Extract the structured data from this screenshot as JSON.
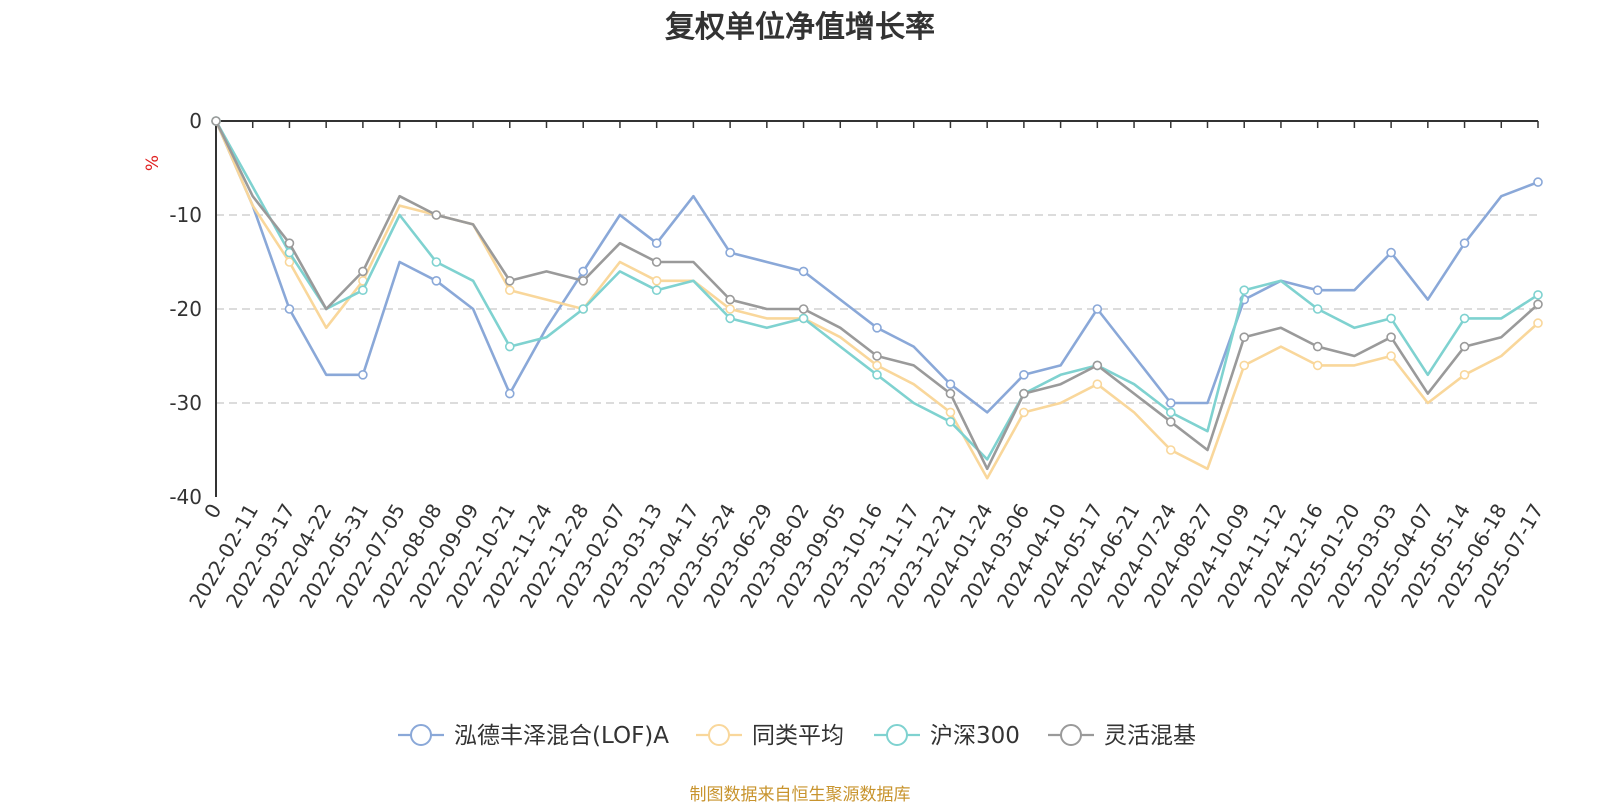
{
  "title": "复权单位净值增长率",
  "footer": "制图数据来自恒生聚源数据库",
  "chart_data": {
    "type": "line",
    "title": "复权单位净值增长率",
    "ylabel": "%",
    "ylim": [
      -40,
      0
    ],
    "yticks": [
      0,
      -10,
      -20,
      -30,
      -40
    ],
    "grid": true,
    "legend_position": "bottom-center",
    "x": [
      "0",
      "2022-02-11",
      "2022-03-17",
      "2022-04-22",
      "2022-05-31",
      "2022-07-05",
      "2022-08-08",
      "2022-09-09",
      "2022-10-21",
      "2022-11-24",
      "2022-12-28",
      "2023-02-07",
      "2023-03-13",
      "2023-04-17",
      "2023-05-24",
      "2023-06-29",
      "2023-08-02",
      "2023-09-05",
      "2023-10-16",
      "2023-11-17",
      "2023-12-21",
      "2024-01-24",
      "2024-03-06",
      "2024-04-10",
      "2024-05-17",
      "2024-06-21",
      "2024-07-24",
      "2024-08-27",
      "2024-10-09",
      "2024-11-12",
      "2024-12-16",
      "2025-01-20",
      "2025-03-03",
      "2025-04-07",
      "2025-05-14",
      "2025-06-18",
      "2025-07-17"
    ],
    "series": [
      {
        "name": "泓德丰泽混合(LOF)A",
        "color": "#8aa8d8",
        "values": [
          0,
          -9,
          -20,
          -27,
          -27,
          -15,
          -17,
          -20,
          -29,
          -22,
          -16,
          -10,
          -13,
          -8,
          -14,
          -15,
          -16,
          -19,
          -22,
          -24,
          -28,
          -31,
          -27,
          -26,
          -20,
          -25,
          -30,
          -30,
          -19,
          -17,
          -18,
          -18,
          -14,
          -19,
          -13,
          -8,
          -6.5
        ]
      },
      {
        "name": "同类平均",
        "color": "#f9d79b",
        "values": [
          0,
          -9,
          -15,
          -22,
          -17,
          -9,
          -10,
          -11,
          -18,
          -19,
          -20,
          -15,
          -17,
          -17,
          -20,
          -21,
          -21,
          -23,
          -26,
          -28,
          -31,
          -38,
          -31,
          -30,
          -28,
          -31,
          -35,
          -37,
          -26,
          -24,
          -26,
          -26,
          -25,
          -30,
          -27,
          -25,
          -21.5
        ]
      },
      {
        "name": "沪深300",
        "color": "#7fd2d0",
        "values": [
          0,
          -7,
          -14,
          -20,
          -18,
          -10,
          -15,
          -17,
          -24,
          -23,
          -20,
          -16,
          -18,
          -17,
          -21,
          -22,
          -21,
          -24,
          -27,
          -30,
          -32,
          -36,
          -29,
          -27,
          -26,
          -28,
          -31,
          -33,
          -18,
          -17,
          -20,
          -22,
          -21,
          -27,
          -21,
          -21,
          -18.5
        ]
      },
      {
        "name": "灵活混基",
        "color": "#9a9a9a",
        "values": [
          0,
          -8,
          -13,
          -20,
          -16,
          -8,
          -10,
          -11,
          -17,
          -16,
          -17,
          -13,
          -15,
          -15,
          -19,
          -20,
          -20,
          -22,
          -25,
          -26,
          -29,
          -37,
          -29,
          -28,
          -26,
          -29,
          -32,
          -35,
          -23,
          -22,
          -24,
          -25,
          -23,
          -29,
          -24,
          -23,
          -19.5
        ]
      }
    ]
  }
}
